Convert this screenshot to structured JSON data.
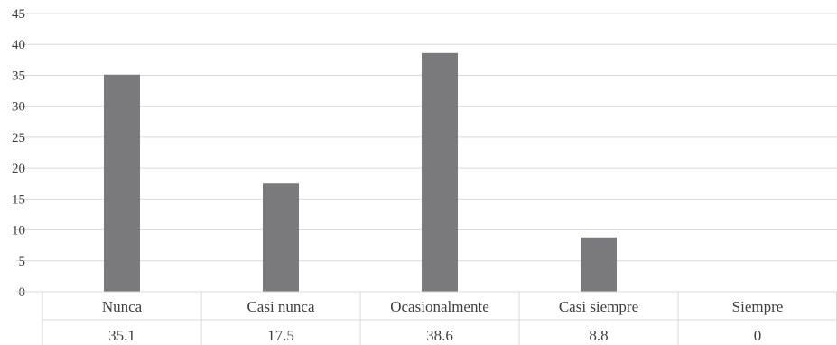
{
  "chart_data": {
    "type": "bar",
    "categories": [
      "Nunca",
      "Casi nunca",
      "Ocasionalmente",
      "Casi siempre",
      "Siempre"
    ],
    "values": [
      35.1,
      17.5,
      38.6,
      8.8,
      0
    ],
    "value_labels": [
      "35.1",
      "17.5",
      "38.6",
      "8.8",
      "0"
    ],
    "yticks": [
      "0",
      "5",
      "10",
      "15",
      "20",
      "25",
      "30",
      "35",
      "40",
      "45"
    ],
    "ylim": [
      0,
      45
    ],
    "grid": true,
    "data_table": true,
    "bar_color": "#7a7a7c",
    "grid_color": "#d9d9d9"
  }
}
